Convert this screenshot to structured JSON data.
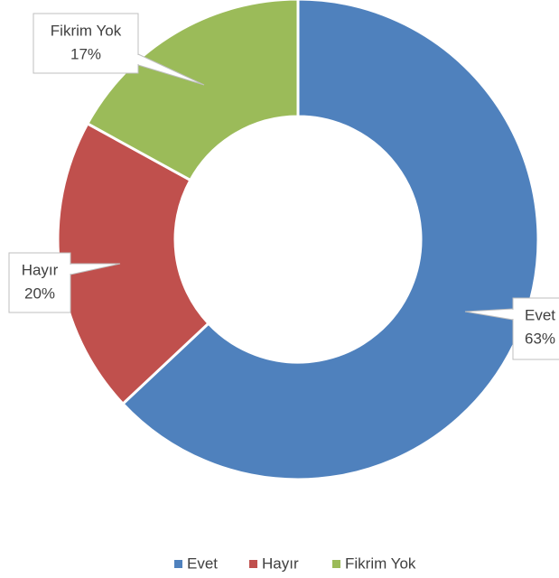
{
  "chart_data": {
    "type": "donut",
    "categories": [
      "Evet",
      "Hayır",
      "Fikrim Yok"
    ],
    "values": [
      63,
      20,
      17
    ],
    "value_labels": [
      "63%",
      "20%",
      "17%"
    ],
    "colors": [
      "#4f81bd",
      "#c0504d",
      "#9bbb59"
    ],
    "legend": "bottom"
  }
}
